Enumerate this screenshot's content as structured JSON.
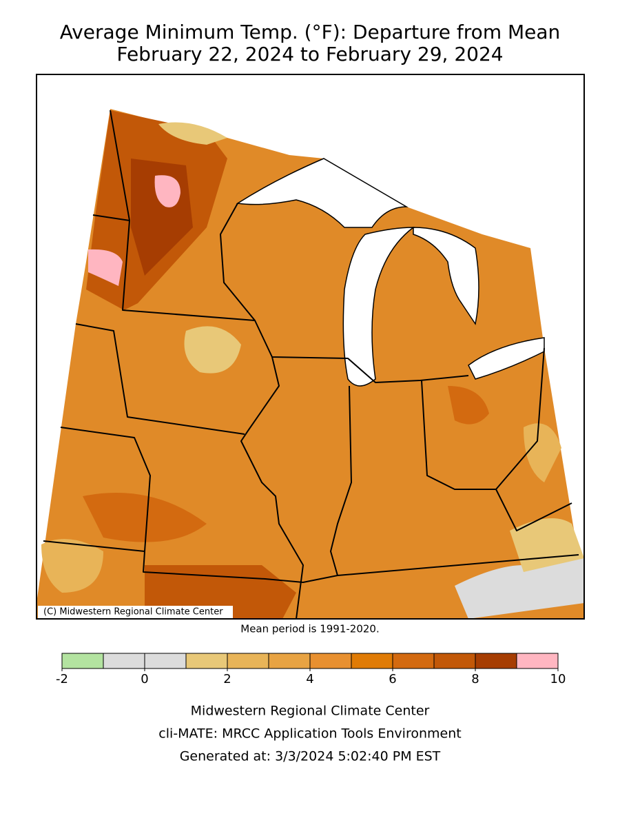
{
  "header": {
    "title": "Average Minimum Temp. (°F): Departure from Mean",
    "subtitle": "February 22, 2024 to February 29, 2024"
  },
  "map": {
    "credit": "(C) Midwestern Regional Climate Center",
    "note": "Mean period is 1991-2020."
  },
  "legend": {
    "bins": [
      -2,
      -1,
      0,
      1,
      2,
      3,
      4,
      5,
      6,
      7,
      8,
      9,
      10
    ],
    "colors": [
      "#b3e3a0",
      "#dcdcdc",
      "#dcdcdc",
      "#e8c878",
      "#e8b458",
      "#e8a343",
      "#e89030",
      "#e07b05",
      "#d36a10",
      "#c25808",
      "#a63d02",
      "#ffb6c1"
    ],
    "ticks": [
      -2,
      0,
      2,
      4,
      6,
      8,
      10
    ]
  },
  "footer": {
    "lines": [
      "Midwestern Regional Climate Center",
      "cli-MATE: MRCC Application Tools Environment",
      "Generated at: 3/3/2024 5:02:40 PM EST"
    ]
  }
}
